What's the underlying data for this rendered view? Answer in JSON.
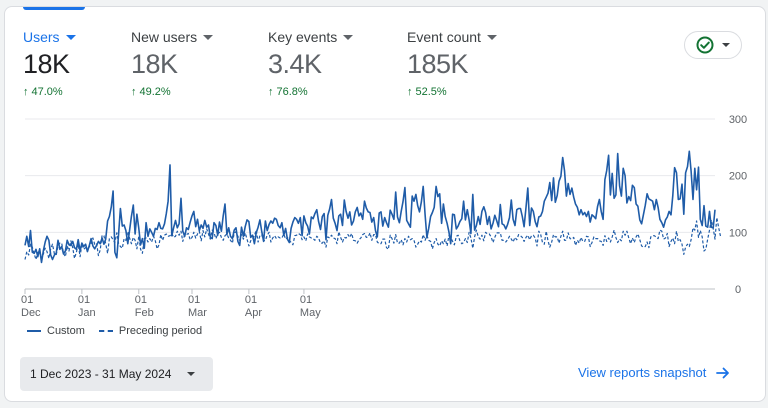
{
  "metrics": [
    {
      "label": "Users",
      "value": "18K",
      "delta": "47.0%",
      "active": true
    },
    {
      "label": "New users",
      "value": "18K",
      "delta": "49.2%",
      "active": false
    },
    {
      "label": "Key events",
      "value": "3.4K",
      "delta": "76.8%",
      "active": false
    },
    {
      "label": "Event count",
      "value": "185K",
      "delta": "52.5%",
      "active": false
    }
  ],
  "status_icon": "check-circle-icon",
  "colors": {
    "accent": "#1a73e8",
    "series": "#1f5ca8",
    "positive": "#137333"
  },
  "chart_data": {
    "type": "line",
    "title": "",
    "xlabel": "",
    "ylabel": "",
    "ylim": [
      0,
      300
    ],
    "y_ticks": [
      "0",
      "100",
      "200",
      "300"
    ],
    "x_ticks": [
      {
        "day": "01",
        "month": "Dec",
        "index": 0
      },
      {
        "day": "01",
        "month": "Jan",
        "index": 31
      },
      {
        "day": "01",
        "month": "Feb",
        "index": 62
      },
      {
        "day": "01",
        "month": "Mar",
        "index": 91
      },
      {
        "day": "01",
        "month": "Apr",
        "index": 122
      },
      {
        "day": "01",
        "month": "May",
        "index": 152
      }
    ],
    "series": [
      {
        "name": "Custom",
        "style": "solid",
        "values": [
          77,
          93,
          75,
          103,
          65,
          63,
          70,
          57,
          71,
          47,
          68,
          83,
          93,
          86,
          60,
          52,
          60,
          63,
          86,
          70,
          75,
          62,
          67,
          86,
          78,
          77,
          84,
          73,
          70,
          87,
          67,
          81,
          75,
          79,
          66,
          76,
          89,
          76,
          71,
          77,
          84,
          80,
          90,
          79,
          88,
          120,
          128,
          145,
          173,
          65,
          55,
          97,
          142,
          111,
          113,
          103,
          80,
          104,
          128,
          148,
          97,
          132,
          107,
          78,
          89,
          72,
          117,
          93,
          106,
          100,
          93,
          107,
          105,
          117,
          107,
          106,
          115,
          133,
          155,
          219,
          94,
          108,
          121,
          108,
          115,
          160,
          102,
          93,
          108,
          105,
          118,
          129,
          137,
          110,
          123,
          103,
          113,
          107,
          121,
          109,
          113,
          91,
          89,
          117,
          112,
          95,
          118,
          102,
          129,
          150,
          96,
          108,
          93,
          89,
          104,
          108,
          84,
          77,
          109,
          93,
          110,
          122,
          119,
          91,
          95,
          80,
          99,
          109,
          122,
          102,
          84,
          120,
          103,
          114,
          120,
          116,
          125,
          123,
          112,
          108,
          117,
          95,
          107,
          88,
          82,
          107,
          118,
          126,
          123,
          116,
          126,
          94,
          129,
          117,
          111,
          97,
          127,
          124,
          133,
          140,
          119,
          105,
          128,
          133,
          87,
          130,
          141,
          158,
          125,
          116,
          103,
          129,
          132,
          112,
          157,
          137,
          125,
          136,
          113,
          120,
          136,
          144,
          129,
          134,
          123,
          155,
          143,
          136,
          135,
          118,
          126,
          103,
          92,
          134,
          136,
          111,
          126,
          117,
          109,
          139,
          132,
          123,
          171,
          127,
          117,
          137,
          154,
          179,
          121,
          115,
          109,
          164,
          155,
          167,
          147,
          136,
          154,
          181,
          131,
          91,
          107,
          128,
          135,
          144,
          181,
          163,
          168,
          116,
          150,
          128,
          116,
          101,
          80,
          132,
          131,
          106,
          111,
          119,
          124,
          155,
          122,
          140,
          122,
          98,
          167,
          104,
          112,
          128,
          114,
          137,
          145,
          135,
          114,
          128,
          106,
          116,
          130,
          121,
          110,
          149,
          115,
          113,
          106,
          114,
          126,
          157,
          123,
          112,
          140,
          142,
          142,
          128,
          110,
          144,
          178,
          112,
          143,
          137,
          119,
          110,
          127,
          129,
          137,
          155,
          162,
          169,
          188,
          156,
          196,
          153,
          165,
          190,
          199,
          232,
          209,
          164,
          186,
          167,
          178,
          162,
          150,
          144,
          131,
          140,
          131,
          135,
          128,
          137,
          118,
          131,
          128,
          124,
          146,
          158,
          137,
          123,
          193,
          209,
          236,
          166,
          204,
          160,
          166,
          239,
          182,
          164,
          213,
          200,
          152,
          163,
          156,
          183,
          179,
          150,
          146,
          122,
          115,
          131,
          148,
          168,
          159,
          157,
          155,
          140,
          158,
          144,
          123,
          117,
          109,
          122,
          127,
          137,
          131,
          165,
          214,
          205,
          158,
          159,
          185,
          132,
          205,
          216,
          243,
          208,
          158,
          213,
          175,
          215,
          123,
          112,
          147,
          111,
          109,
          137,
          109,
          108,
          140
        ]
      },
      {
        "name": "Preceding period",
        "style": "dashed",
        "values": [
          52,
          66,
          60,
          79,
          74,
          62,
          52,
          64,
          67,
          54,
          62,
          72,
          66,
          54,
          71,
          79,
          62,
          60,
          76,
          81,
          81,
          63,
          57,
          76,
          67,
          85,
          73,
          54,
          65,
          79,
          57,
          80,
          70,
          73,
          72,
          74,
          81,
          90,
          79,
          81,
          59,
          69,
          95,
          94,
          80,
          63,
          89,
          92,
          87,
          82,
          99,
          80,
          75,
          72,
          89,
          86,
          101,
          90,
          80,
          91,
          86,
          71,
          93,
          70,
          63,
          89,
          90,
          83,
          89,
          83,
          93,
          85,
          71,
          78,
          96,
          86,
          95,
          97,
          93,
          94,
          98,
          91,
          93,
          102,
          95,
          102,
          84,
          96,
          96,
          98,
          87,
          91,
          100,
          90,
          97,
          102,
          85,
          103,
          92,
          106,
          97,
          88,
          104,
          99,
          89,
          97,
          100,
          91,
          86,
          94,
          97,
          90,
          86,
          81,
          99,
          101,
          93,
          86,
          96,
          88,
          99,
          88,
          76,
          85,
          89,
          94,
          104,
          83,
          94,
          96,
          85,
          86,
          95,
          100,
          83,
          90,
          94,
          89,
          92,
          90,
          90,
          97,
          88,
          91,
          86,
          82,
          78,
          94,
          95,
          98,
          96,
          87,
          92,
          85,
          97,
          92,
          90,
          89,
          86,
          93,
          90,
          81,
          81,
          85,
          74,
          92,
          90,
          95,
          90,
          89,
          80,
          101,
          91,
          83,
          91,
          90,
          96,
          91,
          98,
          86,
          85,
          81,
          87,
          90,
          96,
          98,
          91,
          92,
          99,
          86,
          96,
          96,
          83,
          80,
          80,
          88,
          88,
          73,
          70,
          95,
          89,
          81,
          96,
          81,
          81,
          87,
          78,
          89,
          83,
          93,
          87,
          89,
          86,
          74,
          79,
          85,
          83,
          96,
          86,
          94,
          86,
          84,
          71,
          82,
          89,
          79,
          76,
          85,
          80,
          88,
          76,
          94,
          91,
          84,
          78,
          93,
          95,
          85,
          80,
          82,
          89,
          82,
          100,
          90,
          72,
          92,
          104,
          92,
          88,
          95,
          85,
          100,
          97,
          97,
          92,
          82,
          91,
          99,
          99,
          99,
          86,
          86,
          83,
          87,
          93,
          88,
          83,
          91,
          87,
          96,
          94,
          91,
          84,
          91,
          95,
          87,
          94,
          95,
          90,
          76,
          102,
          96,
          82,
          79,
          102,
          85,
          74,
          83,
          96,
          92,
          92,
          81,
          93,
          102,
          86,
          86,
          99,
          89,
          88,
          91,
          77,
          86,
          81,
          91,
          84,
          84,
          93,
          92,
          75,
          82,
          92,
          89,
          89,
          85,
          84,
          77,
          94,
          84,
          90,
          83,
          92,
          104,
          91,
          82,
          88,
          85,
          102,
          95,
          102,
          90,
          80,
          90,
          82,
          92,
          97,
          87,
          76,
          74,
          75,
          83,
          73,
          92,
          94,
          94,
          91,
          89,
          104,
          102,
          88,
          90,
          98,
          75,
          84,
          90,
          80,
          102,
          84,
          87,
          79,
          61,
          74,
          79,
          75,
          87,
          108,
          104,
          120,
          91,
          103,
          92,
          67,
          70,
          88,
          104,
          122,
          107,
          88,
          126,
          108,
          93
        ]
      }
    ]
  },
  "legend": [
    {
      "label": "Custom",
      "style": "solid"
    },
    {
      "label": "Preceding period",
      "style": "dashed"
    }
  ],
  "date_range": {
    "label": "1 Dec 2023 - 31 May 2024"
  },
  "view_link": {
    "label": "View reports snapshot",
    "icon": "arrow-right-icon"
  }
}
